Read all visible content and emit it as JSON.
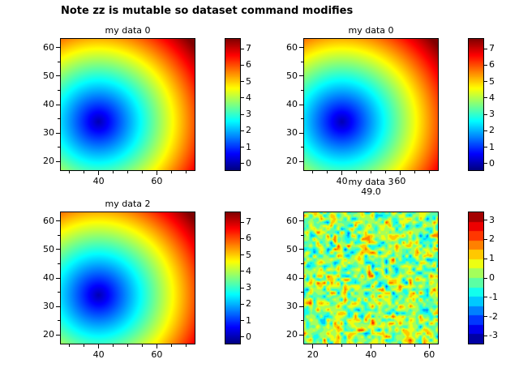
{
  "figure": {
    "title": "Note zz is mutable so dataset command modifies"
  },
  "chart_data": [
    {
      "type": "heatmap",
      "title": "my data 0",
      "field": "radial-distance",
      "center": [
        40,
        34
      ],
      "scale": 0.18,
      "x_range": [
        27,
        73
      ],
      "y_range": [
        17,
        63
      ],
      "z_range": [
        -0.4,
        7.6
      ],
      "x_ticks": [
        40,
        60
      ],
      "y_ticks": [
        20,
        30,
        40,
        50,
        60
      ],
      "colorbar_ticks": [
        0,
        1,
        2,
        3,
        4,
        5,
        6,
        7
      ],
      "colormap": "jet",
      "grid": "off",
      "legend": "colorbar-right"
    },
    {
      "type": "heatmap",
      "title": "my data 0",
      "field": "radial-distance",
      "center": [
        40,
        34
      ],
      "scale": 0.18,
      "x_range": [
        27,
        73
      ],
      "y_range": [
        17,
        63
      ],
      "z_range": [
        -0.4,
        7.6
      ],
      "x_ticks": [
        40,
        60
      ],
      "y_ticks": [
        20,
        30,
        40,
        50,
        60
      ],
      "colorbar_ticks": [
        0,
        1,
        2,
        3,
        4,
        5,
        6,
        7
      ],
      "colormap": "jet",
      "grid": "off",
      "legend": "colorbar-right"
    },
    {
      "type": "heatmap",
      "title": "my data 2",
      "field": "radial-distance",
      "center": [
        40,
        34
      ],
      "scale": 0.18,
      "x_range": [
        27,
        73
      ],
      "y_range": [
        17,
        63
      ],
      "z_range": [
        -0.4,
        7.6
      ],
      "x_ticks": [
        40,
        60
      ],
      "y_ticks": [
        20,
        30,
        40,
        50,
        60
      ],
      "colorbar_ticks": [
        0,
        1,
        2,
        3,
        4,
        5,
        6,
        7
      ],
      "colormap": "jet",
      "grid": "off",
      "legend": "colorbar-right"
    },
    {
      "type": "heatmap",
      "title": "my data 3",
      "subtitle": "49.0",
      "field": "random-noise",
      "seed": 77,
      "grid_n": 40,
      "noise_mean": 0.15,
      "noise_std": 0.9,
      "levels": 14,
      "x_range": [
        17,
        63
      ],
      "y_range": [
        17,
        63
      ],
      "z_range": [
        -3.4,
        3.4
      ],
      "x_ticks": [
        20,
        40,
        60
      ],
      "y_ticks": [
        20,
        30,
        40,
        50,
        60
      ],
      "colorbar_ticks": [
        -3,
        -2,
        -1,
        0,
        1,
        2,
        3
      ],
      "colormap": "jet",
      "grid": "off",
      "legend": "colorbar-right"
    }
  ]
}
